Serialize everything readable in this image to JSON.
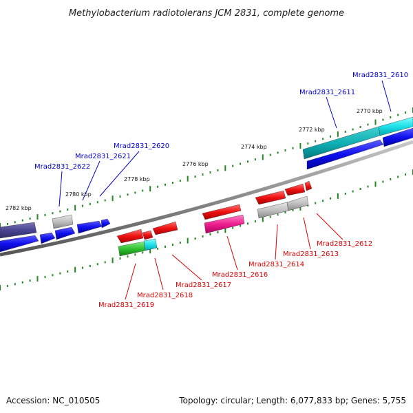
{
  "title": "Methylobacterium radiotolerans JCM 2831, complete genome",
  "scale_labels": [
    "2770 kbp",
    "2772 kbp",
    "2774 kbp",
    "2776 kbp",
    "2778 kbp",
    "2780 kbp",
    "2782 kbp"
  ],
  "forward_gene_labels": [
    "Mrad2831_2610",
    "Mrad2831_2611",
    "Mrad2831_2620",
    "Mrad2831_2621",
    "Mrad2831_2622"
  ],
  "reverse_gene_labels": [
    "Mrad2831_2612",
    "Mrad2831_2613",
    "Mrad2831_2614",
    "Mrad2831_2616",
    "Mrad2831_2617",
    "Mrad2831_2618",
    "Mrad2831_2619"
  ],
  "footer": {
    "accession": "Accession: NC_010505",
    "summary": "Topology: circular; Length: 6,077,833 bp; Genes: 5,755"
  },
  "colors": {
    "forward_label": "#0000cc",
    "reverse_label": "#dd0000",
    "tick": "#228822",
    "backbone": "#888888"
  }
}
